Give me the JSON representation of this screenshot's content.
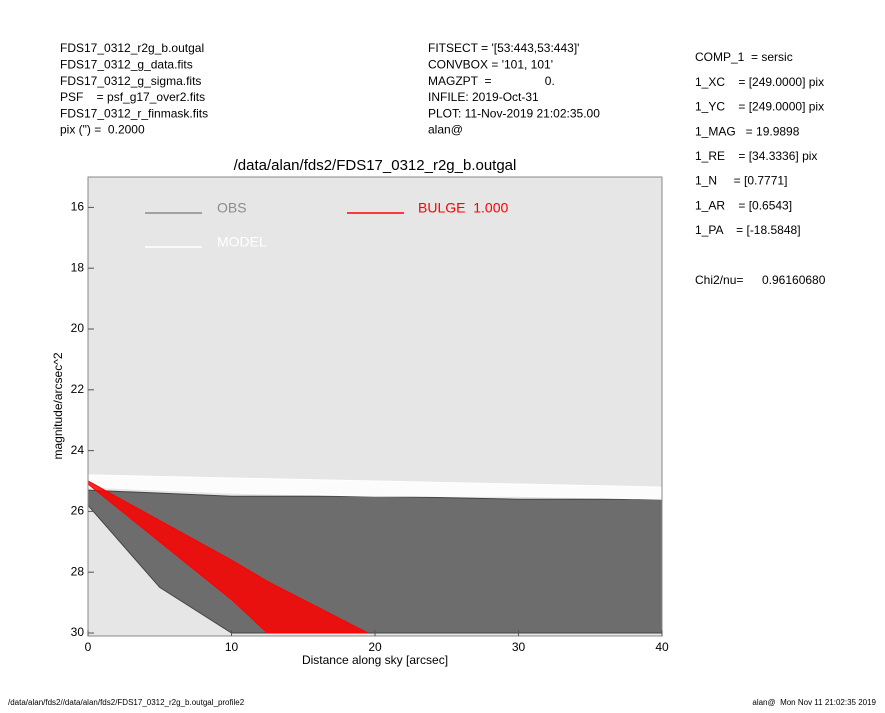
{
  "header": {
    "left": [
      "FDS17_0312_r2g_b.outgal",
      "FDS17_0312_g_data.fits",
      "FDS17_0312_g_sigma.fits",
      "PSF    = psf_g17_over2.fits",
      "FDS17_0312_r_finmask.fits",
      "pix (\") =  0.2000"
    ],
    "middle": [
      "FITSECT = '[53:443,53:443]'",
      "CONVBOX = '101, 101'",
      "MAGZPT  =                0.",
      "INFILE: 2019-Oct-31",
      "PLOT: 11-Nov-2019 21:02:35.00",
      "alan@"
    ],
    "right": [
      "COMP_1  = sersic",
      "1_XC    = [249.0000] pix",
      "1_YC    = [249.0000] pix",
      "1_MAG   = 19.9898",
      "1_RE    = [34.3336] pix",
      "1_N     = [0.7771]",
      "1_AR    = [0.6543]",
      "1_PA    = [-18.5848]"
    ],
    "chi2_label": "Chi2/nu=",
    "chi2_value": "0.96160680"
  },
  "footer": {
    "left": "/data/alan/fds2//data/alan/fds2/FDS17_0312_r2g_b.outgal_profile2",
    "right": "alan@  Mon Nov 11 21:02:35 2019"
  },
  "chart_data": {
    "type": "area",
    "title": "/data/alan/fds2/FDS17_0312_r2g_b.outgal",
    "x_label": "Distance along sky [arcsec]",
    "y_label": "magnitude/arcsec^2",
    "xlim": [
      0,
      40
    ],
    "ylim": [
      30,
      15
    ],
    "xticks": [
      0,
      10,
      20,
      30,
      40
    ],
    "yticks": [
      16,
      18,
      20,
      22,
      24,
      26,
      28,
      30
    ],
    "background": "#e6e6e6",
    "series": [
      {
        "name": "OBS",
        "color": "#444444",
        "legend_color": "#8c8c8c",
        "x": [
          0,
          5,
          10,
          20,
          30,
          40
        ],
        "values": [
          25.3,
          25.4,
          25.5,
          25.5,
          25.6,
          25.6
        ],
        "lower": [
          25.8,
          28.5,
          30,
          30,
          30,
          30
        ]
      },
      {
        "name": "MODEL",
        "color": "#ffffff",
        "legend_color": "#ffffff",
        "x": [
          0,
          10,
          20,
          30,
          40
        ],
        "values": [
          24.8,
          24.9,
          25.0,
          25.1,
          25.2
        ],
        "lower": [
          25.2,
          25.4,
          25.5,
          25.5,
          25.6
        ]
      },
      {
        "name": "BULGE  1.000",
        "color": "#ff0000",
        "legend_color": "#ff0000",
        "x": [
          0,
          5,
          10,
          12.5,
          19.5
        ],
        "values": [
          25.0,
          26.3,
          27.6,
          28.3,
          30
        ],
        "lower": [
          25.1,
          27.0,
          28.9,
          30,
          30
        ]
      }
    ]
  }
}
